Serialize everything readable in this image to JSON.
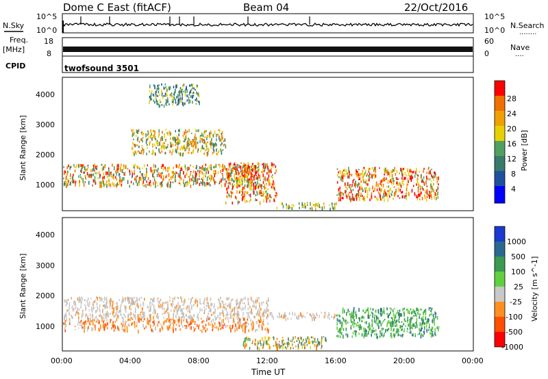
{
  "header": {
    "title": "Dome C East (fitACF)",
    "beam": "Beam 04",
    "date": "22/Oct/2016"
  },
  "nsky_panel": {
    "label": "N.Sky",
    "ticks_left": [
      "10^5",
      "10^0"
    ],
    "ticks_right": [
      "10^5",
      "10^0"
    ],
    "right_label": "N.Search",
    "right_dots": "........"
  },
  "freq_panel": {
    "label_line1": "Freq.",
    "label_line2": "[MHz]",
    "ticks_left": [
      "18",
      "8"
    ],
    "ticks_right": [
      "60",
      "0"
    ],
    "right_label": "Nave",
    "right_dots": "...."
  },
  "cpid_panel": {
    "label": "CPID",
    "program": "twofsound 3501"
  },
  "time_axis": {
    "label": "Time UT",
    "ticks": [
      "00:00",
      "04:00",
      "08:00",
      "12:00",
      "16:00",
      "20:00",
      "00:00"
    ]
  },
  "colors": {
    "power_scale": [
      "#0000ff",
      "#2050a0",
      "#3a7a6a",
      "#50a060",
      "#e8d000",
      "#f0a000",
      "#f07000",
      "#ff0000"
    ],
    "velocity_scale": [
      "#ff0000",
      "#ff5000",
      "#ff9020",
      "#c8c8c8",
      "#c8c8c8",
      "#60d040",
      "#3a9a50",
      "#2a6a90",
      "#1a3ad0"
    ]
  },
  "chart_data": [
    {
      "type": "heatmap",
      "panel": "power",
      "xlabel": "",
      "ylabel": "Slant Range [km]",
      "yticks": [
        "1000",
        "2000",
        "3000",
        "4000"
      ],
      "ylim": [
        200,
        4600
      ],
      "colorbar": {
        "label": "Power [dB]",
        "ticks": [
          "28",
          "24",
          "20",
          "16",
          "12",
          "8",
          "4"
        ]
      },
      "regions": [
        {
          "x": [
            0,
            11.5
          ],
          "y": [
            1050,
            1750
          ],
          "level": "medium-high"
        },
        {
          "x": [
            4,
            9.5
          ],
          "y": [
            2100,
            2900
          ],
          "level": "mixed"
        },
        {
          "x": [
            9.5,
            12.5
          ],
          "y": [
            500,
            1800
          ],
          "level": "high"
        },
        {
          "x": [
            12.5,
            16
          ],
          "y": [
            300,
            500
          ],
          "level": "medium"
        },
        {
          "x": [
            16,
            22
          ],
          "y": [
            600,
            1650
          ],
          "level": "high"
        },
        {
          "x": [
            5,
            8
          ],
          "y": [
            3700,
            4400
          ],
          "level": "low"
        }
      ]
    },
    {
      "type": "heatmap",
      "panel": "velocity",
      "xlabel": "Time UT",
      "ylabel": "Slant Range [km]",
      "yticks": [
        "1000",
        "2000",
        "3000",
        "4000"
      ],
      "ylim": [
        200,
        4600
      ],
      "colorbar": {
        "label": "Velocity [m s^-1]",
        "ticks": [
          "1000",
          "500",
          "100",
          "25",
          "-25",
          "-100",
          "-500",
          "-1000"
        ]
      },
      "regions": [
        {
          "x": [
            0,
            12
          ],
          "y": [
            1300,
            2000
          ],
          "level": "near-zero"
        },
        {
          "x": [
            0,
            12
          ],
          "y": [
            900,
            1300
          ],
          "level": "negative"
        },
        {
          "x": [
            16,
            22
          ],
          "y": [
            700,
            1650
          ],
          "level": "positive"
        },
        {
          "x": [
            12,
            16
          ],
          "y": [
            1300,
            1500
          ],
          "level": "near-zero"
        },
        {
          "x": [
            10.5,
            15.5
          ],
          "y": [
            300,
            700
          ],
          "level": "mixed"
        }
      ]
    }
  ]
}
